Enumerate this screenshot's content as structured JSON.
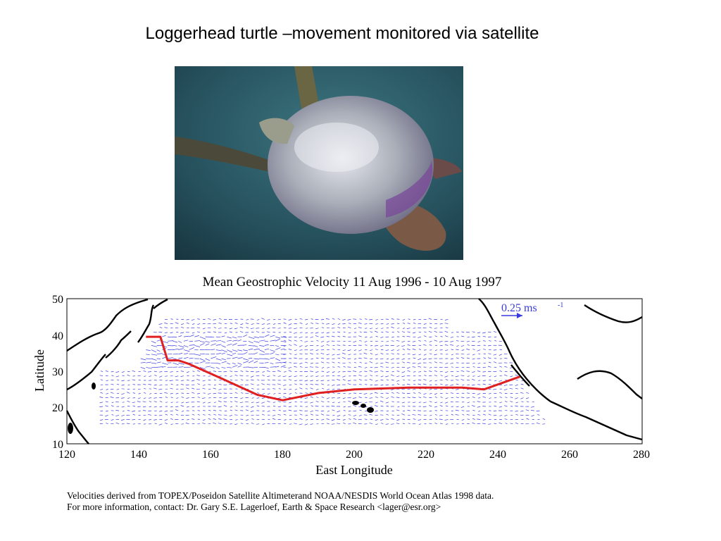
{
  "slide": {
    "title": "Loggerhead turtle –movement monitored via satellite"
  },
  "photo": {
    "subject": "loggerhead sea turtle swimming underwater",
    "water_color": "#2a5a66",
    "shell_color": "#b8bcc4"
  },
  "figure": {
    "title": "Mean Geostrophic Velocity 11 Aug 1996 - 10 Aug 1997",
    "x_label": "East Longitude",
    "y_label": "Latitude",
    "x_ticks": [
      "120",
      "140",
      "160",
      "180",
      "200",
      "220",
      "240",
      "260",
      "280"
    ],
    "y_ticks": [
      "50",
      "40",
      "30",
      "20",
      "10"
    ],
    "scale_label": "0.25 ms",
    "scale_exponent": "-1",
    "caption_line1": "Velocities derived from TOPEX/Poseidon Satellite Altimeterand NOAA/NESDIS World Ocean Atlas 1998 data.",
    "caption_line2": "For more information, contact:  Dr. Gary S.E. Lagerloef, Earth & Space Research <lager@esr.org>",
    "colors": {
      "vectors": "#3a3adf",
      "track": "#e02020",
      "coast": "#000000"
    }
  },
  "chart_data": {
    "type": "map",
    "title": "Mean Geostrophic Velocity 11 Aug 1996 - 10 Aug 1997",
    "xlabel": "East Longitude",
    "ylabel": "Latitude",
    "xlim": [
      120,
      280
    ],
    "ylim": [
      10,
      50
    ],
    "series": [
      {
        "name": "turtle track",
        "x": [
          142,
          146,
          148,
          151,
          154,
          163,
          173,
          180,
          190,
          200,
          215,
          230,
          236,
          246
        ],
        "y": [
          39.5,
          39.5,
          33,
          33,
          32,
          28,
          23.5,
          22,
          24,
          25,
          25.5,
          25.5,
          25,
          28.5
        ]
      }
    ]
  }
}
